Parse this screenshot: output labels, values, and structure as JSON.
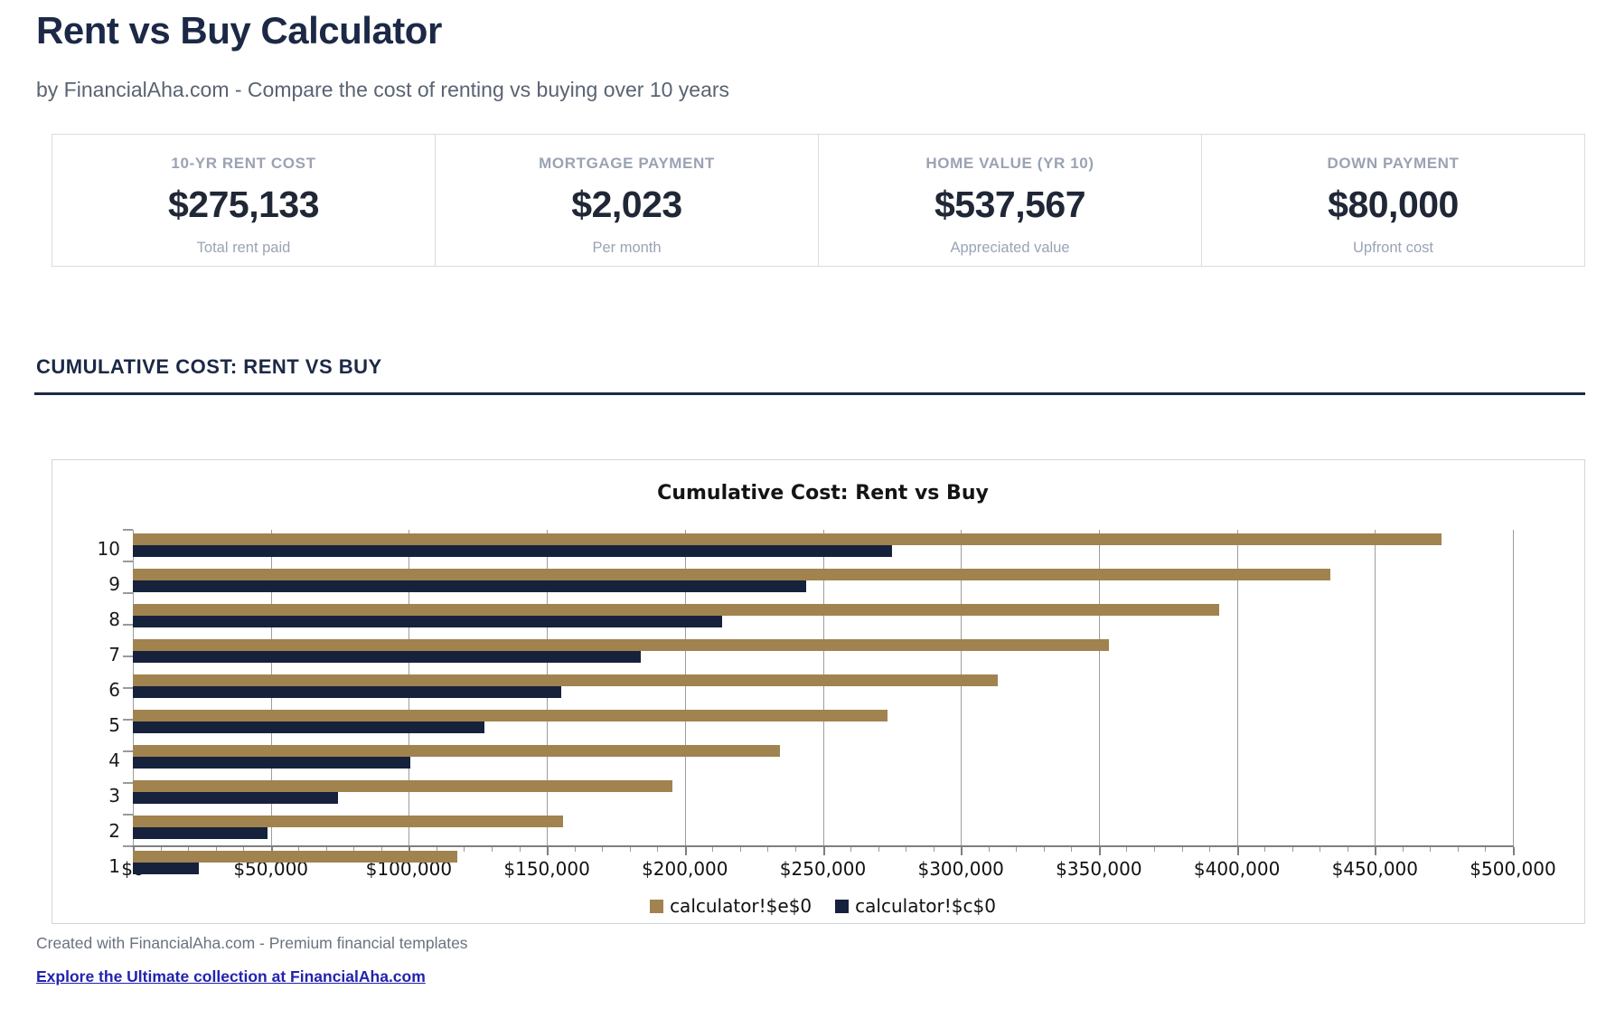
{
  "page": {
    "title": "Rent vs Buy Calculator",
    "subtitle": "by FinancialAha.com - Compare the cost of renting vs buying over 10 years"
  },
  "stats": [
    {
      "label": "10-YR RENT COST",
      "value": "$275,133",
      "sublabel": "Total rent paid"
    },
    {
      "label": "MORTGAGE PAYMENT",
      "value": "$2,023",
      "sublabel": "Per month"
    },
    {
      "label": "HOME VALUE (YR 10)",
      "value": "$537,567",
      "sublabel": "Appreciated value"
    },
    {
      "label": "DOWN PAYMENT",
      "value": "$80,000",
      "sublabel": "Upfront cost"
    }
  ],
  "section": {
    "heading": "CUMULATIVE COST: RENT VS BUY"
  },
  "chart_data": {
    "type": "bar",
    "orientation": "horizontal",
    "title": "Cumulative Cost: Rent vs Buy",
    "categories": [
      1,
      2,
      3,
      4,
      5,
      6,
      7,
      8,
      9,
      10
    ],
    "category_order_on_screen": "10 at top, 1 at bottom",
    "series": [
      {
        "name": "calculator!$e$0",
        "color": "#a1834f",
        "values": [
          117500,
          156000,
          195500,
          234500,
          273500,
          313500,
          353500,
          393500,
          434000,
          474000
        ]
      },
      {
        "name": "calculator!$c$0",
        "color": "#16223c",
        "values": [
          24000,
          48700,
          74200,
          100400,
          127400,
          155200,
          183900,
          213400,
          243800,
          275133
        ]
      }
    ],
    "xlim": [
      0,
      500000
    ],
    "x_tick_step": 50000,
    "x_minor_tick_step": 10000,
    "x_tick_labels": [
      "$0",
      "$50,000",
      "$100,000",
      "$150,000",
      "$200,000",
      "$250,000",
      "$300,000",
      "$350,000",
      "$400,000",
      "$450,000",
      "$500,000"
    ],
    "grid": true,
    "legend_position": "bottom"
  },
  "footer": {
    "created": "Created with FinancialAha.com - Premium financial templates",
    "link": "Explore the Ultimate collection at FinancialAha.com"
  },
  "colors": {
    "heading_navy": "#1c2946",
    "value_dark": "#202736",
    "muted_label": "#9aa3b4",
    "bar_buy_tan": "#a1834f",
    "bar_rent_navy": "#16223c",
    "gridline_gray": "#9d9d9d",
    "link_blue": "#2222b0"
  }
}
